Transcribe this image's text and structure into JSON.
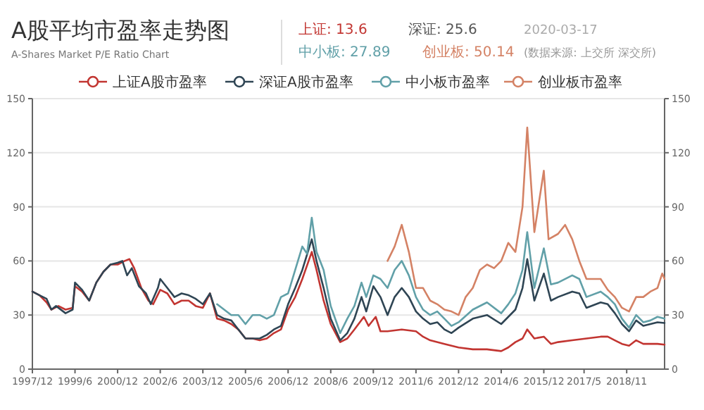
{
  "chart_data": {
    "type": "line",
    "title": "A股平均市盈率走势图",
    "subtitle": "A-Shares Market P/E Ratio Chart",
    "annotations": [
      "上证: 13.6",
      "深证: 25.6",
      "2020-03-17",
      "中小板: 27.89",
      "创业板: 50.14",
      "(数据来源: 上交所 深交所)"
    ],
    "series": [
      {
        "name": "上证A股市盈率",
        "color": "#c23531",
        "x": [
          "1997-12",
          "1998-03",
          "1998-06",
          "1998-08",
          "1998-11",
          "1999-02",
          "1999-05",
          "1999-06",
          "1999-09",
          "1999-12",
          "2000-03",
          "2000-06",
          "2000-09",
          "2000-12",
          "2001-03",
          "2001-05",
          "2001-07",
          "2001-10",
          "2002-01",
          "2002-03",
          "2002-06",
          "2002-09",
          "2002-12",
          "2003-03",
          "2003-06",
          "2003-09",
          "2003-12",
          "2004-03",
          "2004-06",
          "2004-09",
          "2004-12",
          "2005-03",
          "2005-06",
          "2005-09",
          "2005-12",
          "2006-03",
          "2006-06",
          "2006-09",
          "2006-12",
          "2007-03",
          "2007-06",
          "2007-10",
          "2007-12",
          "2008-03",
          "2008-06",
          "2008-10",
          "2009-01",
          "2009-04",
          "2009-08",
          "2009-10",
          "2010-01",
          "2010-03",
          "2010-06",
          "2010-12",
          "2011-06",
          "2011-09",
          "2011-12",
          "2012-06",
          "2012-12",
          "2013-06",
          "2013-12",
          "2014-06",
          "2014-09",
          "2014-12",
          "2015-03",
          "2015-05",
          "2015-08",
          "2015-12",
          "2016-03",
          "2016-06",
          "2016-12",
          "2017-06",
          "2017-12",
          "2018-03",
          "2018-06",
          "2018-09",
          "2018-12",
          "2019-03",
          "2019-06",
          "2019-09",
          "2019-12",
          "2020-03"
        ],
        "values": [
          43,
          41,
          37,
          33,
          35,
          33,
          34,
          46,
          43,
          38,
          48,
          54,
          58,
          58,
          60,
          61,
          56,
          45,
          38,
          36,
          44,
          42,
          36,
          38,
          38,
          35,
          34,
          42,
          28,
          27,
          25,
          22,
          17,
          17,
          16,
          17,
          20,
          22,
          33,
          40,
          50,
          65,
          55,
          38,
          25,
          15,
          17,
          22,
          29,
          24,
          29,
          21,
          21,
          22,
          21,
          18,
          16,
          14,
          12,
          11,
          11,
          10,
          12,
          15,
          17,
          22,
          17,
          18,
          14,
          15,
          16,
          17,
          18,
          18,
          16,
          14,
          13,
          16,
          14,
          14,
          14,
          13.6
        ]
      },
      {
        "name": "深证A股市盈率",
        "color": "#2f4554",
        "x": [
          "1997-12",
          "1998-03",
          "1998-06",
          "1998-08",
          "1998-10",
          "1999-02",
          "1999-05",
          "1999-06",
          "1999-09",
          "1999-12",
          "2000-03",
          "2000-06",
          "2000-09",
          "2000-12",
          "2001-02",
          "2001-04",
          "2001-06",
          "2001-09",
          "2001-12",
          "2002-02",
          "2002-05",
          "2002-06",
          "2002-09",
          "2002-12",
          "2003-03",
          "2003-06",
          "2003-09",
          "2003-12",
          "2004-03",
          "2004-06",
          "2004-09",
          "2004-12",
          "2005-03",
          "2005-06",
          "2005-09",
          "2005-12",
          "2006-03",
          "2006-06",
          "2006-09",
          "2006-12",
          "2007-03",
          "2007-06",
          "2007-10",
          "2007-12",
          "2008-03",
          "2008-06",
          "2008-10",
          "2009-01",
          "2009-04",
          "2009-07",
          "2009-09",
          "2009-12",
          "2010-03",
          "2010-06",
          "2010-09",
          "2010-12",
          "2011-03",
          "2011-06",
          "2011-09",
          "2011-12",
          "2012-03",
          "2012-06",
          "2012-09",
          "2012-12",
          "2013-06",
          "2013-12",
          "2014-06",
          "2014-09",
          "2014-12",
          "2015-03",
          "2015-05",
          "2015-08",
          "2015-12",
          "2016-03",
          "2016-06",
          "2016-12",
          "2017-03",
          "2017-06",
          "2017-12",
          "2018-03",
          "2018-06",
          "2018-09",
          "2018-12",
          "2019-03",
          "2019-06",
          "2019-09",
          "2019-12",
          "2020-03"
        ],
        "values": [
          43,
          41,
          39,
          33,
          35,
          31,
          33,
          48,
          44,
          38,
          48,
          54,
          58,
          59,
          60,
          52,
          56,
          46,
          42,
          36,
          45,
          50,
          45,
          40,
          42,
          41,
          39,
          36,
          42,
          30,
          28,
          27,
          22,
          17,
          17,
          17,
          19,
          22,
          24,
          36,
          45,
          55,
          72,
          60,
          45,
          28,
          16,
          20,
          28,
          40,
          32,
          46,
          40,
          30,
          40,
          45,
          40,
          32,
          28,
          25,
          26,
          22,
          20,
          23,
          28,
          30,
          25,
          29,
          33,
          45,
          61,
          38,
          53,
          38,
          40,
          43,
          42,
          34,
          37,
          36,
          31,
          25,
          21,
          27,
          24,
          25,
          26,
          25.6
        ]
      },
      {
        "name": "中小板市盈率",
        "color": "#61a0a8",
        "x": [
          "2004-06",
          "2004-09",
          "2004-12",
          "2005-03",
          "2005-06",
          "2005-09",
          "2005-12",
          "2006-03",
          "2006-06",
          "2006-09",
          "2006-12",
          "2007-03",
          "2007-06",
          "2007-08",
          "2007-10",
          "2007-12",
          "2008-03",
          "2008-06",
          "2008-10",
          "2009-01",
          "2009-04",
          "2009-07",
          "2009-09",
          "2009-12",
          "2010-03",
          "2010-06",
          "2010-09",
          "2010-12",
          "2011-03",
          "2011-06",
          "2011-09",
          "2011-12",
          "2012-03",
          "2012-06",
          "2012-09",
          "2012-12",
          "2013-06",
          "2013-12",
          "2014-06",
          "2014-09",
          "2014-12",
          "2015-03",
          "2015-05",
          "2015-08",
          "2015-12",
          "2016-03",
          "2016-06",
          "2016-12",
          "2017-03",
          "2017-06",
          "2017-12",
          "2018-03",
          "2018-06",
          "2018-09",
          "2018-12",
          "2019-03",
          "2019-06",
          "2019-09",
          "2019-12",
          "2020-03"
        ],
        "values": [
          36,
          33,
          30,
          30,
          25,
          30,
          30,
          28,
          30,
          40,
          42,
          55,
          68,
          64,
          84,
          65,
          55,
          35,
          20,
          28,
          35,
          48,
          40,
          52,
          50,
          45,
          55,
          60,
          52,
          40,
          33,
          30,
          32,
          28,
          24,
          26,
          33,
          37,
          31,
          36,
          42,
          55,
          76,
          45,
          67,
          47,
          48,
          52,
          50,
          40,
          43,
          40,
          36,
          28,
          23,
          30,
          26,
          27,
          29,
          28
        ]
      },
      {
        "name": "创业板市盈率",
        "color": "#d48265",
        "x": [
          "2010-06",
          "2010-09",
          "2010-12",
          "2011-03",
          "2011-06",
          "2011-09",
          "2011-12",
          "2012-03",
          "2012-06",
          "2012-09",
          "2012-12",
          "2013-03",
          "2013-06",
          "2013-09",
          "2013-12",
          "2014-03",
          "2014-06",
          "2014-09",
          "2014-12",
          "2015-03",
          "2015-05",
          "2015-08",
          "2015-12",
          "2016-02",
          "2016-06",
          "2016-09",
          "2016-12",
          "2017-03",
          "2017-06",
          "2017-12",
          "2018-03",
          "2018-06",
          "2018-09",
          "2018-12",
          "2019-03",
          "2019-06",
          "2019-09",
          "2019-12",
          "2020-02",
          "2020-03"
        ],
        "values": [
          60,
          68,
          80,
          65,
          45,
          45,
          38,
          36,
          33,
          32,
          30,
          40,
          45,
          55,
          58,
          56,
          60,
          70,
          65,
          90,
          134,
          76,
          110,
          72,
          75,
          80,
          72,
          60,
          50,
          50,
          44,
          40,
          34,
          32,
          40,
          40,
          43,
          45,
          53,
          50
        ]
      }
    ],
    "xlim": [
      "1997-12",
      "2020-03"
    ],
    "xticks": [
      {
        "value": "1997-12",
        "label": "1997/12"
      },
      {
        "value": "1999-06",
        "label": "1999/6"
      },
      {
        "value": "2000-12",
        "label": "2000/12"
      },
      {
        "value": "2002-06",
        "label": "2002/6"
      },
      {
        "value": "2003-12",
        "label": "2003/12"
      },
      {
        "value": "2005-06",
        "label": "2005/6"
      },
      {
        "value": "2006-12",
        "label": "2006/12"
      },
      {
        "value": "2008-06",
        "label": "2008/6"
      },
      {
        "value": "2009-12",
        "label": "2009/12"
      },
      {
        "value": "2011-06",
        "label": "2011/6"
      },
      {
        "value": "2012-12",
        "label": "2012/12"
      },
      {
        "value": "2014-06",
        "label": "2014/6"
      },
      {
        "value": "2015-12",
        "label": "2015/12"
      },
      {
        "value": "2017-05",
        "label": "2017/5"
      },
      {
        "value": "2018-11",
        "label": "2018/11"
      }
    ],
    "ylim": [
      0,
      150
    ],
    "yticks": [
      0,
      30,
      60,
      90,
      120,
      150
    ],
    "y2lim": [
      0,
      150
    ],
    "y2ticks": [
      0,
      30,
      60,
      90,
      120,
      150
    ],
    "grid": "y",
    "legend": "top"
  }
}
